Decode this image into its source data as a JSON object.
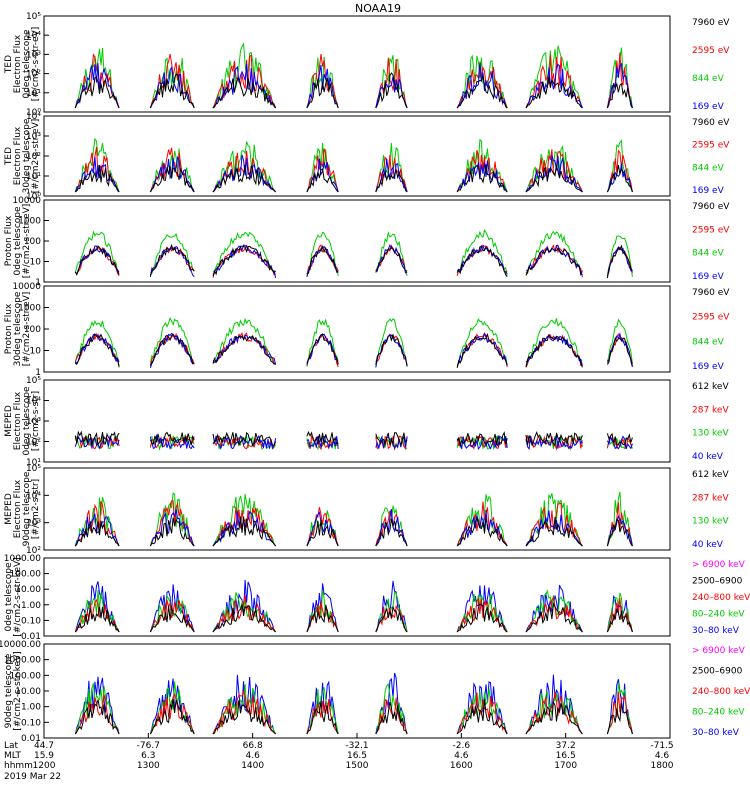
{
  "title": "NOAA19",
  "panels": [
    {
      "label": [
        "TED",
        "Electron Flux",
        "0deg telescope",
        "[#/cm2-s-str-eV]"
      ],
      "scale": "log",
      "yticks": [
        "10⁰",
        "10¹",
        "10²",
        "10³",
        "10⁴",
        "10⁵"
      ],
      "legend": [
        {
          "text": "7960 eV",
          "color": "#000000"
        },
        {
          "text": "2595 eV",
          "color": "#ff0000"
        },
        {
          "text": "844 eV",
          "color": "#00cc00"
        },
        {
          "text": "169 eV",
          "color": "#0000ff"
        }
      ]
    },
    {
      "label": [
        "TED",
        "Electron Flux",
        "30deg telescope",
        "[#/cm2-s-str-eV]"
      ],
      "scale": "log",
      "yticks": [
        "10⁰",
        "10¹",
        "10²",
        "10³",
        "10⁴"
      ],
      "legend": [
        {
          "text": "7960 eV",
          "color": "#000000"
        },
        {
          "text": "2595 eV",
          "color": "#ff0000"
        },
        {
          "text": "844 eV",
          "color": "#00cc00"
        },
        {
          "text": "169 eV",
          "color": "#0000ff"
        }
      ]
    },
    {
      "label": [
        "Proton Flux",
        "0deg telescope",
        "[#/cm2-s-str-eV]"
      ],
      "scale": "log",
      "yticks": [
        "1",
        "10",
        "100",
        "1000",
        "10000"
      ],
      "legend": [
        {
          "text": "7960 eV",
          "color": "#000000"
        },
        {
          "text": "2595 eV",
          "color": "#ff0000"
        },
        {
          "text": "844 eV",
          "color": "#00cc00"
        },
        {
          "text": "169 eV",
          "color": "#0000ff"
        }
      ]
    },
    {
      "label": [
        "Proton Flux",
        "30deg telescope",
        "[#/cm2-s-str-eV]"
      ],
      "scale": "log",
      "yticks": [
        "1",
        "10",
        "100",
        "1000",
        "10000"
      ],
      "legend": [
        {
          "text": "7960 eV",
          "color": "#000000"
        },
        {
          "text": "2595 eV",
          "color": "#ff0000"
        },
        {
          "text": "844 eV",
          "color": "#00cc00"
        },
        {
          "text": "169 eV",
          "color": "#0000ff"
        }
      ]
    },
    {
      "label": [
        "MEPED",
        "Electron Flux",
        "0deg telescope",
        "[#/cm2-s-str]"
      ],
      "scale": "log",
      "yticks": [
        "10¹",
        "10²",
        "10³",
        "10⁴",
        "10⁵"
      ],
      "legend": [
        {
          "text": "612 keV",
          "color": "#000000"
        },
        {
          "text": "287 keV",
          "color": "#ff0000"
        },
        {
          "text": "130 keV",
          "color": "#00cc00"
        },
        {
          "text": "40 keV",
          "color": "#0000ff"
        }
      ]
    },
    {
      "label": [
        "MEPED",
        "Electron Flux",
        "90deg telescope",
        "[#/cm2-s-str]"
      ],
      "scale": "log",
      "yticks": [
        "10²",
        "10³",
        "10⁴",
        "10⁵"
      ],
      "legend": [
        {
          "text": "612 keV",
          "color": "#000000"
        },
        {
          "text": "287 keV",
          "color": "#ff0000"
        },
        {
          "text": "130 keV",
          "color": "#00cc00"
        },
        {
          "text": "40 keV",
          "color": "#0000ff"
        }
      ]
    },
    {
      "label": [
        "0deg telescope",
        "[#/cm2-s-str-keV]"
      ],
      "scale": "log",
      "yticks": [
        "0.01",
        "0.10",
        "1.00",
        "10.00",
        "100.00",
        "1000.00"
      ],
      "legend": [
        {
          "text": "> 6900 keV",
          "color": "#ff00ff"
        },
        {
          "text": "2500–6900",
          "color": "#000000"
        },
        {
          "text": "240–800 keV",
          "color": "#ff0000"
        },
        {
          "text": "80–240 keV",
          "color": "#00cc00"
        },
        {
          "text": "30–80 keV",
          "color": "#0000ff"
        }
      ]
    },
    {
      "label": [
        "90deg telescope",
        "[#/cm2-s-str-keV]"
      ],
      "scale": "log",
      "yticks": [
        "0.01",
        "0.10",
        "1.00",
        "10.00",
        "100.00",
        "1000.00",
        "10000.00"
      ],
      "legend": [
        {
          "text": "> 6900 keV",
          "color": "#ff00ff"
        },
        {
          "text": "2500–6900",
          "color": "#000000"
        },
        {
          "text": "240–800 keV",
          "color": "#ff0000"
        },
        {
          "text": "80–240 keV",
          "color": "#00cc00"
        },
        {
          "text": "30–80 keV",
          "color": "#0000ff"
        }
      ]
    }
  ],
  "axis": {
    "row_labels": [
      "Lat",
      "MLT",
      "hhmm"
    ],
    "date": "2019 Mar 22",
    "ticks": [
      {
        "lat": "44.7",
        "mlt": "15.9",
        "hhmm": "1200"
      },
      {
        "lat": "-76.7",
        "mlt": "6.3",
        "hhmm": "1300"
      },
      {
        "lat": "66.8",
        "mlt": "4.6",
        "hhmm": "1400"
      },
      {
        "lat": "-32.1",
        "mlt": "16.5",
        "hhmm": "1500"
      },
      {
        "lat": "-2.6",
        "mlt": "4.6",
        "hhmm": "1600"
      },
      {
        "lat": "37.2",
        "mlt": "16.5",
        "hhmm": "1700"
      },
      {
        "lat": "-71.5",
        "mlt": "4.6",
        "hhmm": "1800"
      }
    ]
  },
  "colors": {
    "black": "#000000",
    "red": "#ff0000",
    "green": "#00cc00",
    "blue": "#0000ff",
    "magenta": "#ff00ff"
  },
  "chart_data": {
    "type": "line",
    "title": "NOAA19",
    "x_range": [
      "1200",
      "1800"
    ],
    "x_ticks": [
      "1200",
      "1300",
      "1400",
      "1500",
      "1600",
      "1700",
      "1800"
    ],
    "series_note": "time series of particle flux, log scale",
    "panels": [
      {
        "name": "TED Electron Flux 0deg",
        "series": [
          "7960 eV",
          "2595 eV",
          "844 eV",
          "169 eV"
        ],
        "ylim": [
          1,
          100000
        ]
      },
      {
        "name": "TED Electron Flux 30deg",
        "series": [
          "7960 eV",
          "2595 eV",
          "844 eV",
          "169 eV"
        ],
        "ylim": [
          1,
          10000
        ]
      },
      {
        "name": "Proton Flux 0deg",
        "series": [
          "7960 eV",
          "2595 eV",
          "844 eV",
          "169 eV"
        ],
        "ylim": [
          1,
          10000
        ]
      },
      {
        "name": "Proton Flux 30deg",
        "series": [
          "7960 eV",
          "2595 eV",
          "844 eV",
          "169 eV"
        ],
        "ylim": [
          1,
          10000
        ]
      },
      {
        "name": "MEPED Electron Flux 0deg",
        "series": [
          "612 keV",
          "287 keV",
          "130 keV",
          "40 keV"
        ],
        "ylim": [
          10,
          100000
        ]
      },
      {
        "name": "MEPED Electron Flux 90deg",
        "series": [
          "612 keV",
          "287 keV",
          "130 keV",
          "40 keV"
        ],
        "ylim": [
          100,
          100000
        ]
      },
      {
        "name": "MEPED Proton 0deg",
        "series": [
          "> 6900 keV",
          "2500–6900",
          "240–800 keV",
          "80–240 keV",
          "30–80 keV"
        ],
        "ylim": [
          0.01,
          1000
        ]
      },
      {
        "name": "MEPED Proton 90deg",
        "series": [
          "> 6900 keV",
          "2500–6900",
          "240–800 keV",
          "80–240 keV",
          "30–80 keV"
        ],
        "ylim": [
          0.01,
          10000
        ]
      }
    ]
  }
}
